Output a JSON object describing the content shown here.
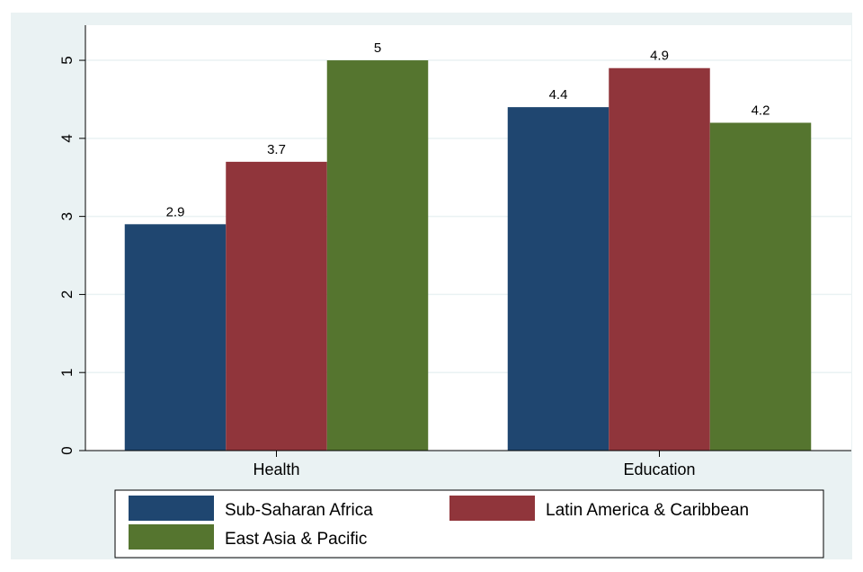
{
  "chart_data": {
    "type": "bar",
    "categories": [
      "Health",
      "Education"
    ],
    "series": [
      {
        "name": "Sub-Saharan Africa",
        "values": [
          2.9,
          4.4
        ],
        "color": "#1f4670"
      },
      {
        "name": "Latin America & Caribbean",
        "values": [
          3.7,
          4.9
        ],
        "color": "#90353b"
      },
      {
        "name": "East Asia & Pacific",
        "values": [
          5,
          4.2
        ],
        "color": "#55752f"
      }
    ],
    "value_labels": [
      [
        "2.9",
        "4.4"
      ],
      [
        "3.7",
        "4.9"
      ],
      [
        "5",
        "4.2"
      ]
    ],
    "yticks": [
      0,
      1,
      2,
      3,
      4,
      5
    ],
    "ylim": [
      0,
      5.45
    ],
    "grid": true,
    "legend_position": "bottom",
    "title": "",
    "xlabel": "",
    "ylabel": "",
    "colors": {
      "background": "#eaf2f3",
      "plot_background": "#ffffff",
      "gridline": "#eaf2f3"
    }
  }
}
